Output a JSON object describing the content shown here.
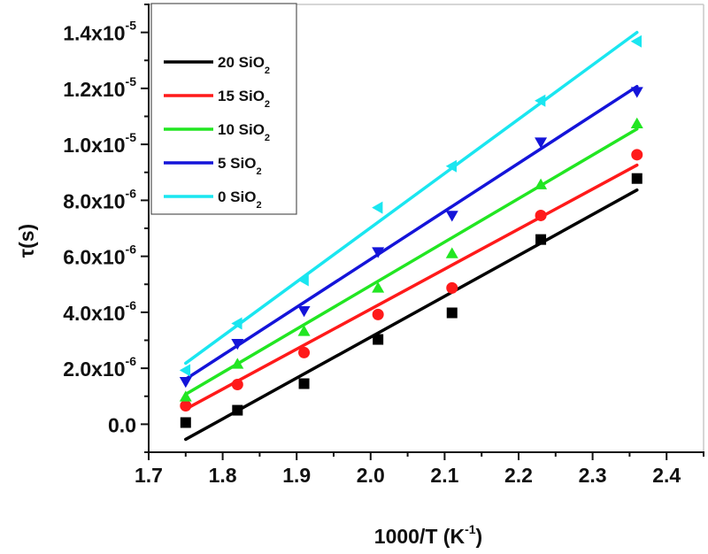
{
  "chart_data": {
    "type": "scatter",
    "title": "",
    "xlabel": "1000/T (K",
    "xlabel_sup": "-1",
    "xlabel_close": ")",
    "ylabel": "τ(s)",
    "xlim": [
      1.7,
      2.45
    ],
    "ylim": [
      -1e-06,
      1.5e-05
    ],
    "x_ticks": [
      1.7,
      1.8,
      1.9,
      2.0,
      2.1,
      2.2,
      2.3,
      2.4
    ],
    "x_tick_labels": [
      "1.7",
      "1.8",
      "1.9",
      "2.0",
      "2.1",
      "2.2",
      "2.3",
      "2.4"
    ],
    "y_ticks": [
      0,
      2e-06,
      4e-06,
      6e-06,
      8e-06,
      1e-05,
      1.2e-05,
      1.4e-05
    ],
    "y_tick_labels": [
      {
        "base": "0.0",
        "exp": ""
      },
      {
        "base": "2.0x10",
        "exp": "-6"
      },
      {
        "base": "4.0x10",
        "exp": "-6"
      },
      {
        "base": "6.0x10",
        "exp": "-6"
      },
      {
        "base": "8.0x10",
        "exp": "-6"
      },
      {
        "base": "1.0x10",
        "exp": "-5"
      },
      {
        "base": "1.2x10",
        "exp": "-5"
      },
      {
        "base": "1.4x10",
        "exp": "-5"
      }
    ],
    "grid": false,
    "legend_position": "top-left",
    "x": [
      1.75,
      1.82,
      1.91,
      2.01,
      2.11,
      2.23,
      2.36
    ],
    "series": [
      {
        "name": "20 SiO2",
        "label": "20 SiO",
        "sub": "2",
        "color": "#000000",
        "marker": "square",
        "values": [
          6e-08,
          5e-07,
          1.45e-06,
          3.03e-06,
          3.98e-06,
          6.6e-06,
          8.78e-06
        ],
        "fit": {
          "x": [
            1.75,
            2.36
          ],
          "y": [
            -5.4e-07,
            8.37e-06
          ]
        }
      },
      {
        "name": "15 SiO2",
        "label": "15 SiO",
        "sub": "2",
        "color": "#ff1a1a",
        "marker": "circle",
        "values": [
          6.6e-07,
          1.42e-06,
          2.56e-06,
          3.92e-06,
          4.87e-06,
          7.46e-06,
          9.63e-06
        ],
        "fit": {
          "x": [
            1.75,
            2.36
          ],
          "y": [
            5.4e-07,
            9.26e-06
          ]
        }
      },
      {
        "name": "10 SiO2",
        "label": "10 SiO",
        "sub": "2",
        "color": "#22e622",
        "marker": "triangle-up",
        "values": [
          9.8e-07,
          2.15e-06,
          3.32e-06,
          4.87e-06,
          6.1e-06,
          8.56e-06,
          1.074e-05
        ],
        "fit": {
          "x": [
            1.75,
            2.36
          ],
          "y": [
            1.07e-06,
            1.055e-05
          ]
        }
      },
      {
        "name": "5 SiO2",
        "label": " 5 SiO",
        "sub": "2",
        "color": "#1414d9",
        "marker": "triangle-down",
        "values": [
          1.52e-06,
          2.88e-06,
          4.05e-06,
          6.16e-06,
          7.46e-06,
          1.008e-05,
          1.188e-05
        ],
        "fit": {
          "x": [
            1.75,
            2.36
          ],
          "y": [
            1.61e-06,
            1.207e-05
          ]
        }
      },
      {
        "name": "0 SiO2",
        "label": " 0 SiO",
        "sub": "2",
        "color": "#1ae6f0",
        "marker": "triangle-left",
        "values": [
          1.93e-06,
          3.6e-06,
          5.15e-06,
          7.74e-06,
          9.22e-06,
          1.156e-05,
          1.368e-05
        ],
        "fit": {
          "x": [
            1.75,
            2.36
          ],
          "y": [
            2.18e-06,
            1.4e-05
          ]
        }
      }
    ]
  }
}
